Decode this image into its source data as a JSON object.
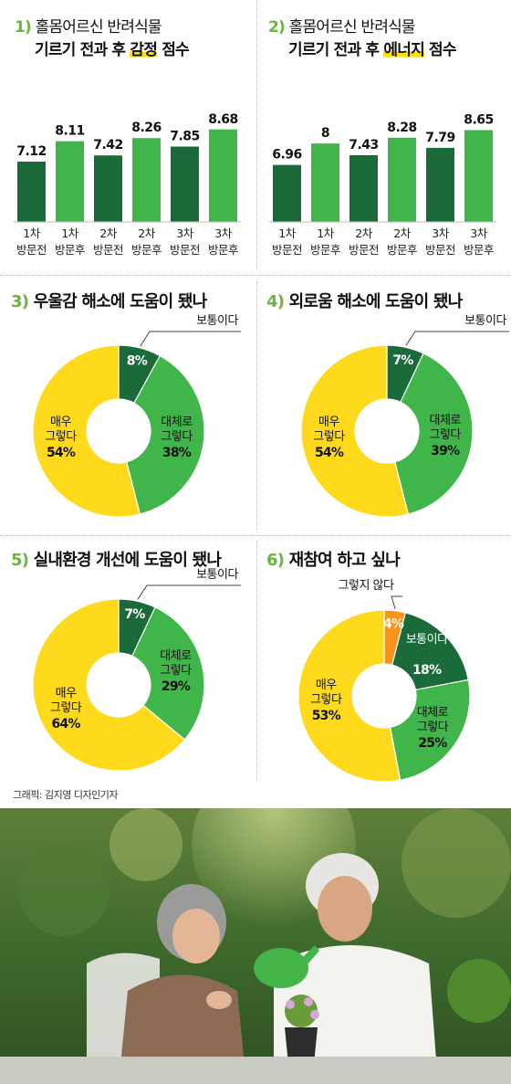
{
  "colors": {
    "dark_green": "#1b6a3a",
    "light_green": "#3fb54a",
    "yellow": "#ffd91c",
    "orange": "#f7941d",
    "accent_green": "#6cb33f",
    "highlight": "#ffe100"
  },
  "panel1": {
    "num": "1)",
    "line1": "홀몸어르신 반려식물",
    "line2_pre": "기르기 전과 후 ",
    "line2_hl": "감정",
    "line2_post": " 점수"
  },
  "panel2": {
    "num": "2)",
    "line1": "홀몸어르신 반려식물",
    "line2_pre": "기르기 전과 후 ",
    "line2_hl": "에너지",
    "line2_post": " 점수"
  },
  "panel3": {
    "num": "3)",
    "title": "우울감 해소에 도움이 됐나"
  },
  "panel4": {
    "num": "4)",
    "title": "외로움 해소에 도움이 됐나"
  },
  "panel5": {
    "num": "5)",
    "title": "실내환경 개선에 도움이 됐나"
  },
  "panel6": {
    "num": "6)",
    "title": "재참여 하고 싶나"
  },
  "credit": "그래픽: 김지영 디자인기자",
  "photo_description": "",
  "chart_data": [
    {
      "type": "bar",
      "categories": [
        [
          "1차",
          "방문전"
        ],
        [
          "1차",
          "방문후"
        ],
        [
          "2차",
          "방문전"
        ],
        [
          "2차",
          "방문후"
        ],
        [
          "3차",
          "방문전"
        ],
        [
          "3차",
          "방문후"
        ]
      ],
      "values": [
        7.12,
        8.11,
        7.42,
        8.26,
        7.85,
        8.68
      ],
      "labels": [
        "7.12",
        "8.11",
        "7.42",
        "8.26",
        "7.85",
        "8.68"
      ],
      "bar_colors": [
        "#1b6a3a",
        "#3fb54a",
        "#1b6a3a",
        "#3fb54a",
        "#1b6a3a",
        "#3fb54a"
      ]
    },
    {
      "type": "bar",
      "categories": [
        [
          "1차",
          "방문전"
        ],
        [
          "1차",
          "방문후"
        ],
        [
          "2차",
          "방문전"
        ],
        [
          "2차",
          "방문후"
        ],
        [
          "3차",
          "방문전"
        ],
        [
          "3차",
          "방문후"
        ]
      ],
      "values": [
        6.96,
        8,
        7.43,
        8.28,
        7.79,
        8.65
      ],
      "labels": [
        "6.96",
        "8",
        "7.43",
        "8.28",
        "7.79",
        "8.65"
      ],
      "bar_colors": [
        "#1b6a3a",
        "#3fb54a",
        "#1b6a3a",
        "#3fb54a",
        "#1b6a3a",
        "#3fb54a"
      ]
    },
    {
      "type": "pie",
      "slices": [
        {
          "label": "보통이다",
          "value": 8,
          "text": "8%",
          "color": "#1b6a3a"
        },
        {
          "label": "대체로 그렇다",
          "value": 38,
          "text": "38%",
          "color": "#3fb54a"
        },
        {
          "label": "매우 그렇다",
          "value": 54,
          "text": "54%",
          "color": "#ffd91c"
        }
      ]
    },
    {
      "type": "pie",
      "slices": [
        {
          "label": "보통이다",
          "value": 7,
          "text": "7%",
          "color": "#1b6a3a"
        },
        {
          "label": "대체로 그렇다",
          "value": 39,
          "text": "39%",
          "color": "#3fb54a"
        },
        {
          "label": "매우 그렇다",
          "value": 54,
          "text": "54%",
          "color": "#ffd91c"
        }
      ]
    },
    {
      "type": "pie",
      "slices": [
        {
          "label": "보통이다",
          "value": 7,
          "text": "7%",
          "color": "#1b6a3a"
        },
        {
          "label": "대체로 그렇다",
          "value": 29,
          "text": "29%",
          "color": "#3fb54a"
        },
        {
          "label": "매우 그렇다",
          "value": 64,
          "text": "64%",
          "color": "#ffd91c"
        }
      ]
    },
    {
      "type": "pie",
      "slices": [
        {
          "label": "그렇지 않다",
          "value": 4,
          "text": "4%",
          "color": "#f7941d"
        },
        {
          "label": "보통이다",
          "value": 18,
          "text": "18%",
          "color": "#1b6a3a"
        },
        {
          "label": "대체로 그렇다",
          "value": 25,
          "text": "25%",
          "color": "#3fb54a"
        },
        {
          "label": "매우 그렇다",
          "value": 53,
          "text": "53%",
          "color": "#ffd91c"
        }
      ]
    }
  ]
}
